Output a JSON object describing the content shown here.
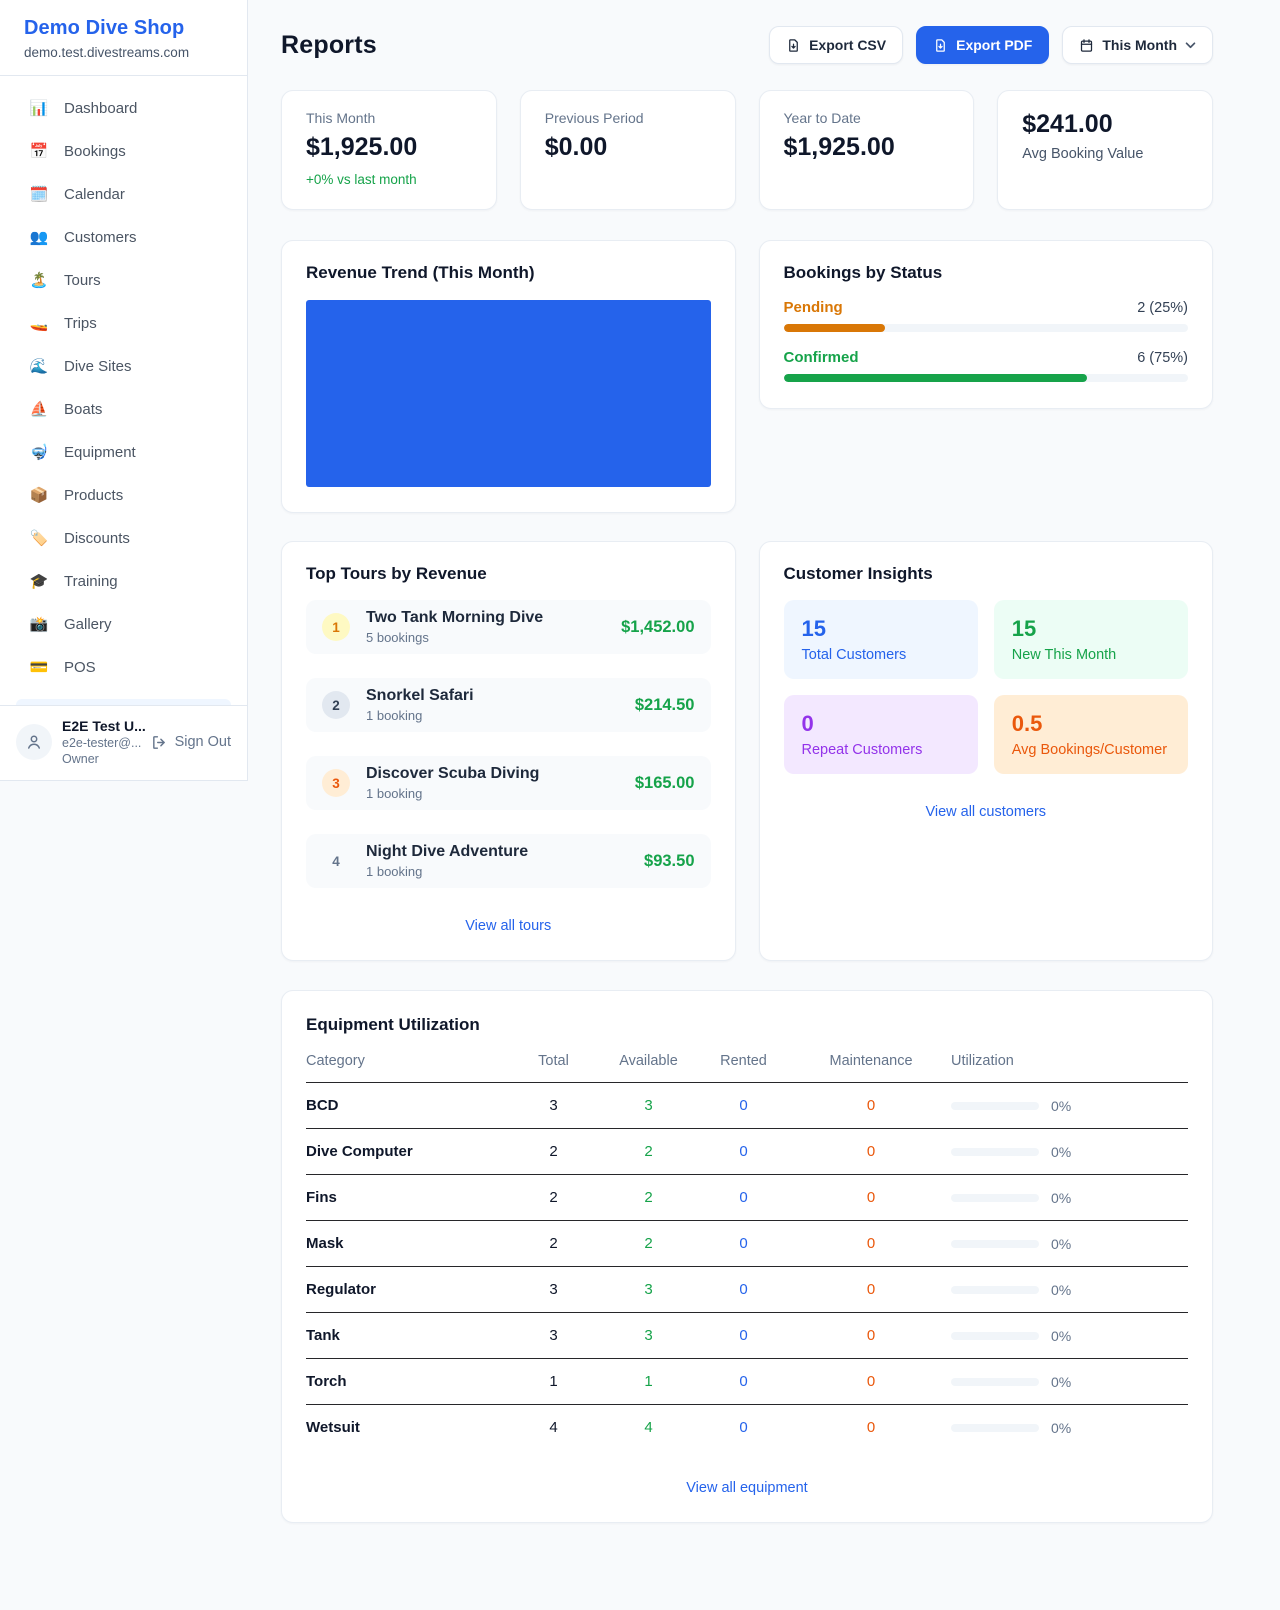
{
  "colors": {
    "accent": "#2563eb",
    "green": "#16a34a",
    "orange": "#d97706",
    "maint": "#ea580c"
  },
  "sidebar": {
    "title": "Demo Dive Shop",
    "domain": "demo.test.divestreams.com",
    "nav": [
      {
        "label": "Dashboard",
        "icon": "📊",
        "item_name": "sidebar-item-dashboard",
        "icon_name": "bar-chart-icon"
      },
      {
        "label": "Bookings",
        "icon": "📅",
        "item_name": "sidebar-item-bookings",
        "icon_name": "calendar-icon"
      },
      {
        "label": "Calendar",
        "icon": "🗓️",
        "item_name": "sidebar-item-calendar",
        "icon_name": "spiral-calendar-icon"
      },
      {
        "label": "Customers",
        "icon": "👥",
        "item_name": "sidebar-item-customers",
        "icon_name": "people-icon"
      },
      {
        "label": "Tours",
        "icon": "🏝️",
        "item_name": "sidebar-item-tours",
        "icon_name": "island-icon"
      },
      {
        "label": "Trips",
        "icon": "🚤",
        "item_name": "sidebar-item-trips",
        "icon_name": "speedboat-icon"
      },
      {
        "label": "Dive Sites",
        "icon": "🌊",
        "item_name": "sidebar-item-dive-sites",
        "icon_name": "wave-icon"
      },
      {
        "label": "Boats",
        "icon": "⛵",
        "item_name": "sidebar-item-boats",
        "icon_name": "sailboat-icon"
      },
      {
        "label": "Equipment",
        "icon": "🤿",
        "item_name": "sidebar-item-equipment",
        "icon_name": "diving-mask-icon"
      },
      {
        "label": "Products",
        "icon": "📦",
        "item_name": "sidebar-item-products",
        "icon_name": "package-icon"
      },
      {
        "label": "Discounts",
        "icon": "🏷️",
        "item_name": "sidebar-item-discounts",
        "icon_name": "tag-icon"
      },
      {
        "label": "Training",
        "icon": "🎓",
        "item_name": "sidebar-item-training",
        "icon_name": "graduation-cap-icon"
      },
      {
        "label": "Gallery",
        "icon": "📸",
        "item_name": "sidebar-item-gallery",
        "icon_name": "camera-icon"
      },
      {
        "label": "POS",
        "icon": "💳",
        "item_name": "sidebar-item-pos",
        "icon_name": "credit-card-icon"
      }
    ],
    "user": {
      "name": "E2E Test U...",
      "email": "e2e-tester@...",
      "role": "Owner",
      "sign_out": "Sign Out"
    }
  },
  "header": {
    "title": "Reports",
    "export_csv": "Export CSV",
    "export_pdf": "Export PDF",
    "period": "This Month"
  },
  "stats": [
    {
      "label": "This Month",
      "value": "$1,925.00",
      "sub": "+0% vs last month"
    },
    {
      "label": "Previous Period",
      "value": "$0.00"
    },
    {
      "label": "Year to Date",
      "value": "$1,925.00"
    },
    {
      "label": "Avg Booking Value",
      "value": "$241.00"
    }
  ],
  "revenue_trend": {
    "title": "Revenue Trend (This Month)"
  },
  "bookings_by_status": {
    "title": "Bookings by Status",
    "items": [
      {
        "label": "Pending",
        "value": "2 (25%)",
        "pct": 25,
        "color": "#d97706"
      },
      {
        "label": "Confirmed",
        "value": "6 (75%)",
        "pct": 75,
        "color": "#16a34a"
      }
    ]
  },
  "top_tours": {
    "title": "Top Tours by Revenue",
    "items": [
      {
        "rank": "1",
        "name": "Two Tank Morning Dive",
        "bookings": "5 bookings",
        "revenue": "$1,452.00",
        "badge_bg": "#fef9c3",
        "badge_color": "#d97706"
      },
      {
        "rank": "2",
        "name": "Snorkel Safari",
        "bookings": "1 booking",
        "revenue": "$214.50",
        "badge_bg": "#e2e8f0",
        "badge_color": "#334155"
      },
      {
        "rank": "3",
        "name": "Discover Scuba Diving",
        "bookings": "1 booking",
        "revenue": "$165.00",
        "badge_bg": "#ffedd5",
        "badge_color": "#ea580c"
      },
      {
        "rank": "4",
        "name": "Night Dive Adventure",
        "bookings": "1 booking",
        "revenue": "$93.50",
        "badge_bg": "transparent",
        "badge_color": "#64748b"
      }
    ],
    "view_all": "View all tours"
  },
  "customer_insights": {
    "title": "Customer Insights",
    "tiles": [
      {
        "value": "15",
        "label": "Total Customers",
        "bg": "#eff6ff",
        "color": "#2563eb"
      },
      {
        "value": "15",
        "label": "New This Month",
        "bg": "#ecfdf5",
        "color": "#16a34a"
      },
      {
        "value": "0",
        "label": "Repeat Customers",
        "bg": "#f3e8ff",
        "color": "#9333ea"
      },
      {
        "value": "0.5",
        "label": "Avg Bookings/Customer",
        "bg": "#ffedd5",
        "color": "#ea580c"
      }
    ],
    "view_all": "View all customers"
  },
  "equipment": {
    "title": "Equipment Utilization",
    "columns": [
      "Category",
      "Total",
      "Available",
      "Rented",
      "Maintenance",
      "Utilization"
    ],
    "rows": [
      {
        "category": "BCD",
        "total": "3",
        "available": "3",
        "rented": "0",
        "maintenance": "0",
        "utilization": "0%",
        "util_pct": 0
      },
      {
        "category": "Dive Computer",
        "total": "2",
        "available": "2",
        "rented": "0",
        "maintenance": "0",
        "utilization": "0%",
        "util_pct": 0
      },
      {
        "category": "Fins",
        "total": "2",
        "available": "2",
        "rented": "0",
        "maintenance": "0",
        "utilization": "0%",
        "util_pct": 0
      },
      {
        "category": "Mask",
        "total": "2",
        "available": "2",
        "rented": "0",
        "maintenance": "0",
        "utilization": "0%",
        "util_pct": 0
      },
      {
        "category": "Regulator",
        "total": "3",
        "available": "3",
        "rented": "0",
        "maintenance": "0",
        "utilization": "0%",
        "util_pct": 0
      },
      {
        "category": "Tank",
        "total": "3",
        "available": "3",
        "rented": "0",
        "maintenance": "0",
        "utilization": "0%",
        "util_pct": 0
      },
      {
        "category": "Torch",
        "total": "1",
        "available": "1",
        "rented": "0",
        "maintenance": "0",
        "utilization": "0%",
        "util_pct": 0
      },
      {
        "category": "Wetsuit",
        "total": "4",
        "available": "4",
        "rented": "0",
        "maintenance": "0",
        "utilization": "0%",
        "util_pct": 0
      }
    ],
    "view_all": "View all equipment"
  }
}
